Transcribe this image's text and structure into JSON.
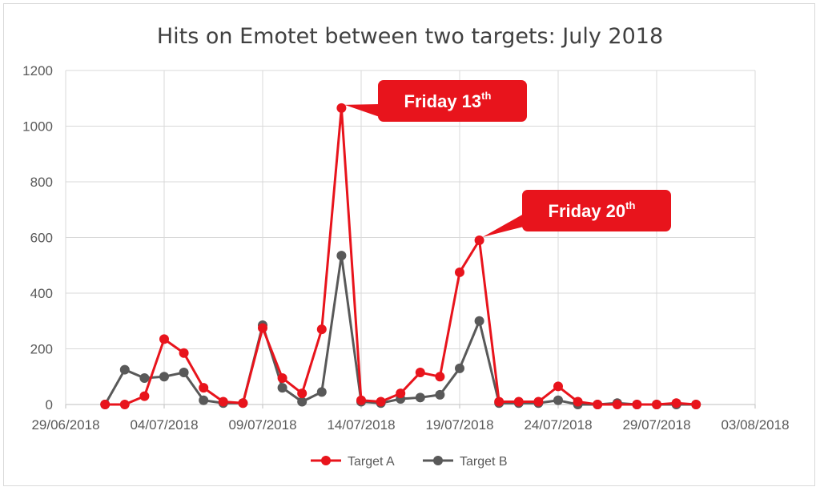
{
  "chart_data": {
    "type": "line",
    "title": "Hits on Emotet between two targets: July 2018",
    "xlabel": "",
    "ylabel": "",
    "ylim": [
      0,
      1200
    ],
    "yticks": [
      0,
      200,
      400,
      600,
      800,
      1000,
      1200
    ],
    "xlim": [
      "2018-06-29",
      "2018-08-03"
    ],
    "xtick_labels": [
      "29/06/2018",
      "04/07/2018",
      "09/07/2018",
      "14/07/2018",
      "19/07/2018",
      "24/07/2018",
      "29/07/2018",
      "03/08/2018"
    ],
    "grid": true,
    "legend_position": "bottom",
    "series": [
      {
        "name": "Target A",
        "color": "#e8141c",
        "x": [
          "2018-07-01",
          "2018-07-02",
          "2018-07-03",
          "2018-07-04",
          "2018-07-05",
          "2018-07-06",
          "2018-07-07",
          "2018-07-08",
          "2018-07-09",
          "2018-07-10",
          "2018-07-11",
          "2018-07-12",
          "2018-07-13",
          "2018-07-14",
          "2018-07-15",
          "2018-07-16",
          "2018-07-17",
          "2018-07-18",
          "2018-07-19",
          "2018-07-20",
          "2018-07-21",
          "2018-07-22",
          "2018-07-23",
          "2018-07-24",
          "2018-07-25",
          "2018-07-26",
          "2018-07-27",
          "2018-07-28",
          "2018-07-29",
          "2018-07-30",
          "2018-07-31"
        ],
        "values": [
          0,
          0,
          30,
          235,
          185,
          60,
          10,
          5,
          275,
          95,
          40,
          270,
          1065,
          15,
          10,
          40,
          115,
          100,
          475,
          590,
          10,
          10,
          10,
          65,
          10,
          0,
          0,
          0,
          0,
          5,
          0
        ]
      },
      {
        "name": "Target B",
        "color": "#595959",
        "x": [
          "2018-07-01",
          "2018-07-02",
          "2018-07-03",
          "2018-07-04",
          "2018-07-05",
          "2018-07-06",
          "2018-07-07",
          "2018-07-08",
          "2018-07-09",
          "2018-07-10",
          "2018-07-11",
          "2018-07-12",
          "2018-07-13",
          "2018-07-14",
          "2018-07-15",
          "2018-07-16",
          "2018-07-17",
          "2018-07-18",
          "2018-07-19",
          "2018-07-20",
          "2018-07-21",
          "2018-07-22",
          "2018-07-23",
          "2018-07-24",
          "2018-07-25",
          "2018-07-26",
          "2018-07-27",
          "2018-07-28",
          "2018-07-29",
          "2018-07-30",
          "2018-07-31"
        ],
        "values": [
          0,
          125,
          95,
          100,
          115,
          15,
          5,
          5,
          285,
          60,
          10,
          45,
          535,
          10,
          5,
          20,
          25,
          35,
          130,
          300,
          5,
          5,
          5,
          15,
          0,
          0,
          5,
          0,
          0,
          0,
          0
        ]
      }
    ],
    "annotations": [
      {
        "text": "Friday 13",
        "sup": "th",
        "series": "Target A",
        "x": "2018-07-13"
      },
      {
        "text": "Friday 20",
        "sup": "th",
        "series": "Target A",
        "x": "2018-07-20"
      }
    ]
  }
}
